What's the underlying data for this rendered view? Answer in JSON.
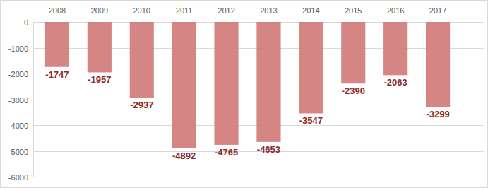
{
  "chart_data": {
    "type": "bar",
    "categories": [
      "2008",
      "2009",
      "2010",
      "2011",
      "2012",
      "2013",
      "2014",
      "2015",
      "2016",
      "2017"
    ],
    "values": [
      -1747,
      -1957,
      -2937,
      -4892,
      -4765,
      -4653,
      -3547,
      -2390,
      -2063,
      -3299
    ],
    "color": "#d27878",
    "ylim": [
      -6000,
      0
    ],
    "yticks": [
      0,
      -1000,
      -2000,
      -3000,
      -4000,
      -5000,
      -6000
    ],
    "grid": true,
    "data_labels": true
  }
}
